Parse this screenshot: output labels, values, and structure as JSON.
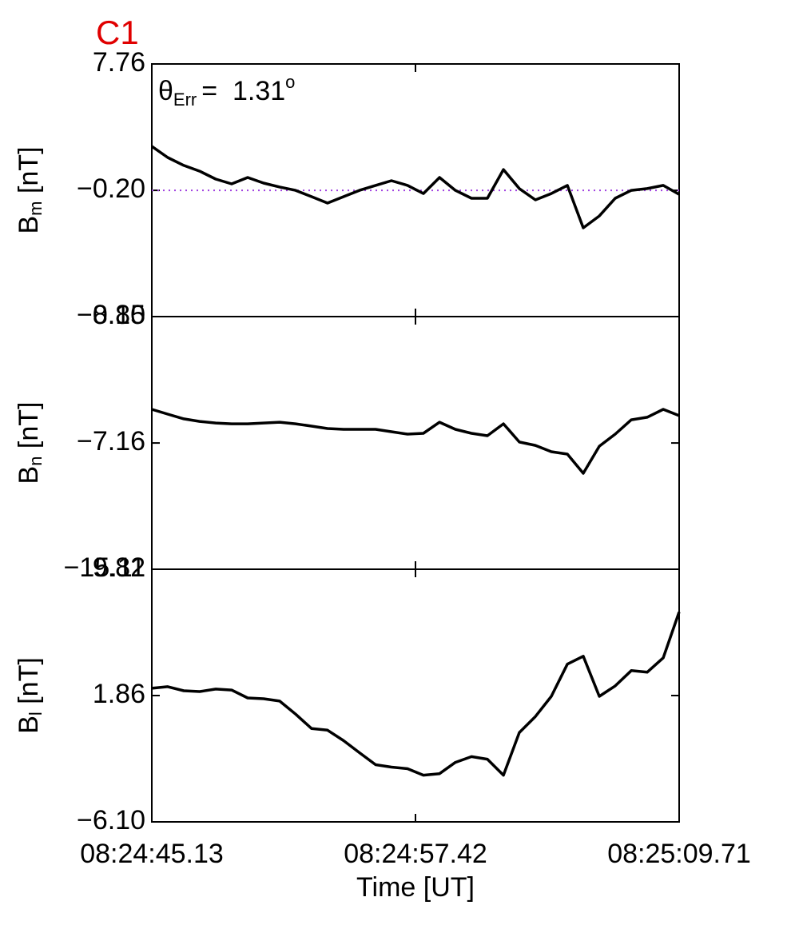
{
  "chart_data": [
    {
      "type": "line",
      "title": "C1",
      "title_color": "#e00000",
      "annotation": {
        "symbol": "θ",
        "subscript": "Err",
        "text": "=  1.31",
        "superscript": "o"
      },
      "ylabel_symbol": "B",
      "ylabel_subscript": "m",
      "ylabel_unit": " [nT]",
      "ylim": [
        -8.15,
        7.76
      ],
      "yticks": [
        {
          "value": -8.15,
          "label": "−8.15"
        },
        {
          "value": -0.2,
          "label": "−0.20"
        },
        7.76
      ],
      "xlim": [
        30285.13,
        30309.71
      ],
      "xticks": [
        30285.13,
        30297.42,
        30309.71
      ],
      "reference_line": {
        "value": -0.2,
        "color": "#a040e0"
      },
      "color": "#000000",
      "x": [
        30285.13,
        30285.87,
        30286.62,
        30287.36,
        30288.11,
        30288.85,
        30289.6,
        30290.34,
        30291.09,
        30291.83,
        30292.58,
        30293.32,
        30294.07,
        30294.81,
        30295.56,
        30296.3,
        30297.05,
        30297.79,
        30298.54,
        30299.28,
        30300.03,
        30300.77,
        30301.52,
        30302.26,
        30303.01,
        30303.75,
        30304.5,
        30305.24,
        30305.99,
        30306.73,
        30307.48,
        30308.22,
        30308.97,
        30309.71
      ],
      "values": [
        2.57,
        1.87,
        1.37,
        1.01,
        0.51,
        0.21,
        0.61,
        0.26,
        0.01,
        -0.2,
        -0.6,
        -1.0,
        -0.6,
        -0.2,
        0.11,
        0.41,
        0.11,
        -0.4,
        0.61,
        -0.2,
        -0.7,
        -0.7,
        1.11,
        -0.09,
        -0.8,
        -0.4,
        0.11,
        -2.56,
        -1.81,
        -0.7,
        -0.2,
        -0.09,
        0.11,
        -0.45
      ]
    },
    {
      "type": "line",
      "ylabel_symbol": "B",
      "ylabel_subscript": "n",
      "ylabel_unit": " [nT]",
      "ylim": [
        -15.11,
        0.8
      ],
      "yticks": [
        {
          "value": -15.11,
          "label": "−15.11"
        },
        {
          "value": -7.16,
          "label": "−7.16"
        },
        {
          "value": 0.8,
          "label": "0.80"
        }
      ],
      "xlim": [
        30285.13,
        30309.71
      ],
      "xticks": [
        30285.13,
        30297.42,
        30309.71
      ],
      "color": "#000000",
      "x": [
        30285.13,
        30285.87,
        30286.62,
        30287.36,
        30288.11,
        30288.85,
        30289.6,
        30290.34,
        30291.09,
        30291.83,
        30292.58,
        30293.32,
        30294.07,
        30294.81,
        30295.56,
        30296.3,
        30297.05,
        30297.79,
        30298.54,
        30299.28,
        30300.03,
        30300.77,
        30301.52,
        30302.26,
        30303.01,
        30303.75,
        30304.5,
        30305.24,
        30305.99,
        30306.73,
        30307.48,
        30308.22,
        30308.97,
        30309.71
      ],
      "values": [
        -5.04,
        -5.34,
        -5.64,
        -5.8,
        -5.9,
        -5.95,
        -5.95,
        -5.9,
        -5.85,
        -5.95,
        -6.1,
        -6.25,
        -6.3,
        -6.3,
        -6.3,
        -6.45,
        -6.6,
        -6.55,
        -5.85,
        -6.3,
        -6.55,
        -6.7,
        -5.95,
        -7.1,
        -7.31,
        -7.71,
        -7.86,
        -9.07,
        -7.36,
        -6.6,
        -5.7,
        -5.54,
        -5.04,
        -5.44
      ]
    },
    {
      "type": "line",
      "ylabel_symbol": "B",
      "ylabel_subscript": "l",
      "ylabel_unit": " [nT]",
      "xlabel": "Time [UT]",
      "ylim": [
        -6.1,
        9.82
      ],
      "yticks": [
        {
          "value": -6.1,
          "label": "−6.10"
        },
        1.86,
        9.82
      ],
      "xlim": [
        30285.13,
        30309.71
      ],
      "xticks": [
        {
          "value": 30285.13,
          "label": "08:24:45.13"
        },
        {
          "value": 30297.42,
          "label": "08:24:57.42"
        },
        {
          "value": 30309.71,
          "label": "08:25:09.71"
        }
      ],
      "color": "#000000",
      "x": [
        30285.13,
        30285.87,
        30286.62,
        30287.36,
        30288.11,
        30288.85,
        30289.6,
        30290.34,
        30291.09,
        30291.83,
        30292.58,
        30293.32,
        30294.07,
        30294.81,
        30295.56,
        30296.3,
        30297.05,
        30297.79,
        30298.54,
        30299.28,
        30300.03,
        30300.77,
        30301.52,
        30302.26,
        30303.01,
        30303.75,
        30304.5,
        30305.24,
        30305.99,
        30306.73,
        30307.48,
        30308.22,
        30308.97,
        30309.71
      ],
      "values": [
        2.32,
        2.42,
        2.16,
        2.11,
        2.27,
        2.21,
        1.71,
        1.66,
        1.51,
        0.69,
        -0.22,
        -0.32,
        -0.98,
        -1.74,
        -2.5,
        -2.65,
        -2.75,
        -3.16,
        -3.06,
        -2.35,
        -1.99,
        -2.15,
        -3.16,
        -0.47,
        0.54,
        1.81,
        3.84,
        4.34,
        1.81,
        2.47,
        3.43,
        3.33,
        4.24,
        7.13
      ]
    }
  ]
}
